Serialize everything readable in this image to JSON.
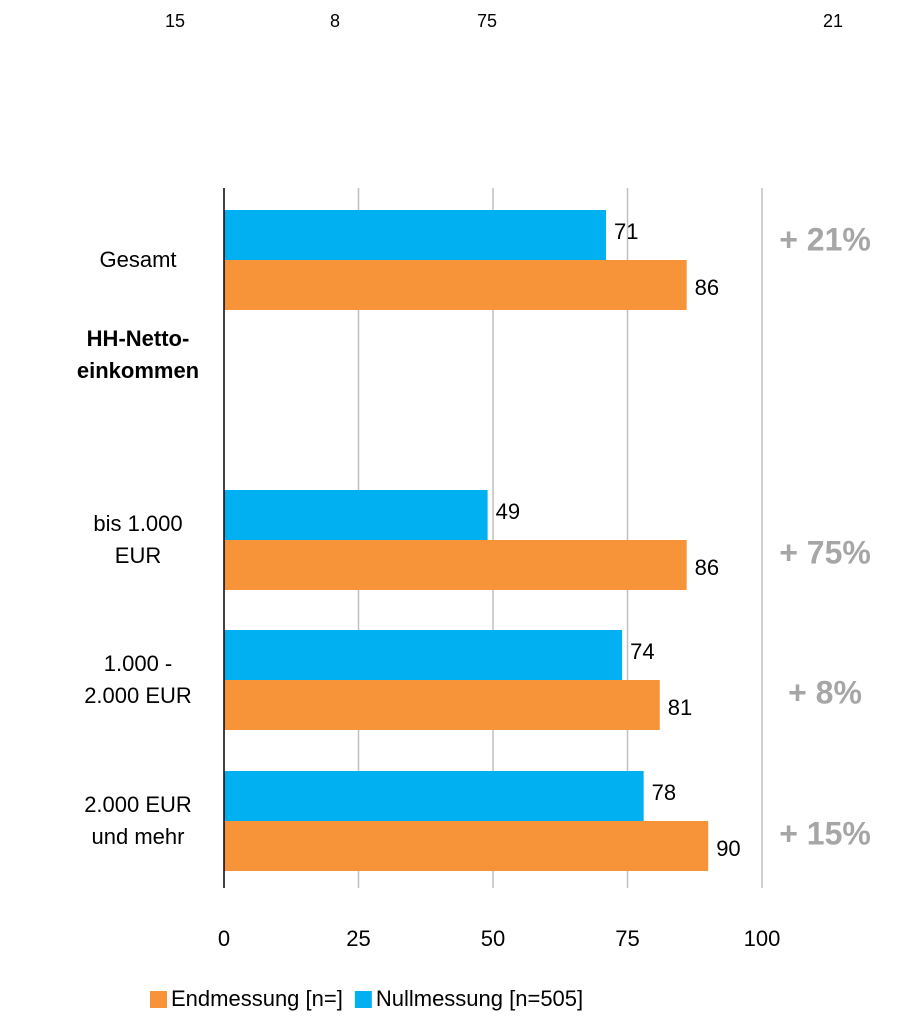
{
  "top_labels": [
    15,
    8,
    75,
    21
  ],
  "chart_data": {
    "type": "hbar",
    "categories": [
      "Gesamt",
      "HH-Netto-\neinkommen",
      "bis 1.000\nEUR",
      "1.000 -\n2.000 EUR",
      "2.000 EUR\nund mehr"
    ],
    "series": [
      {
        "name": "Endmessung [n=]",
        "color": "#f7943a",
        "values": [
          86,
          null,
          86,
          81,
          90
        ]
      },
      {
        "name": "Nullmessung [n=505]",
        "color": "#00b0f0",
        "values": [
          71,
          null,
          49,
          74,
          78
        ]
      }
    ],
    "annotations": [
      "+ 21%",
      null,
      "+ 75%",
      "+ 8%",
      "+ 15%"
    ],
    "xlim": [
      0,
      100
    ],
    "xticks": [
      0,
      25,
      50,
      75,
      100
    ],
    "grid": true
  }
}
